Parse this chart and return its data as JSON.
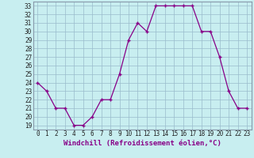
{
  "hours": [
    0,
    1,
    2,
    3,
    4,
    5,
    6,
    7,
    8,
    9,
    10,
    11,
    12,
    13,
    14,
    15,
    16,
    17,
    18,
    19,
    20,
    21,
    22,
    23
  ],
  "values": [
    24,
    23,
    21,
    21,
    19,
    19,
    20,
    22,
    22,
    25,
    29,
    31,
    30,
    33,
    33,
    33,
    33,
    33,
    30,
    30,
    27,
    23,
    21,
    21
  ],
  "line_color": "#880088",
  "marker": "+",
  "markersize": 3,
  "linewidth": 0.9,
  "bg_color": "#c8eef0",
  "grid_color": "#99bbcc",
  "ylim_min": 18.5,
  "ylim_max": 33.5,
  "yticks": [
    19,
    20,
    21,
    22,
    23,
    24,
    25,
    26,
    27,
    28,
    29,
    30,
    31,
    32,
    33
  ],
  "xlabel": "Windchill (Refroidissement éolien,°C)",
  "xlabel_fontsize": 6.5,
  "tick_fontsize": 5.5,
  "xlabel_color": "#880088",
  "spine_color": "#8899aa"
}
